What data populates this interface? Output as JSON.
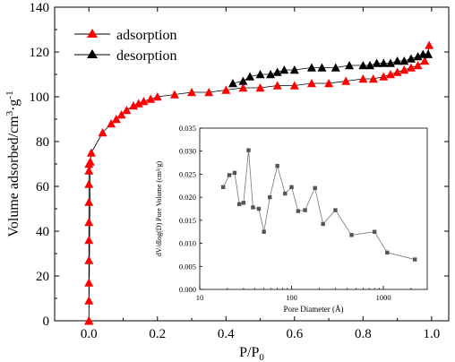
{
  "chart_data": [
    {
      "type": "line",
      "xlabel_main": "P/P",
      "xlabel_sub": "0",
      "ylabel": "Volume adsorbed/cm",
      "ylabel_sup1": "3",
      "ylabel_mid": "·g",
      "ylabel_sup2": "-1",
      "xlim": [
        -0.1,
        1.05
      ],
      "ylim": [
        0,
        140
      ],
      "xticks": [
        0.0,
        0.2,
        0.4,
        0.6,
        0.8,
        1.0
      ],
      "xtick_labels": [
        "0.0",
        "0.2",
        "0.4",
        "0.6",
        "0.8",
        "1.0"
      ],
      "yticks": [
        0,
        20,
        40,
        60,
        80,
        100,
        120,
        140
      ],
      "ytick_labels": [
        "0",
        "20",
        "40",
        "60",
        "80",
        "100",
        "120",
        "140"
      ],
      "legend_position": "top-left",
      "series": [
        {
          "name": "adsorption",
          "color": "#ff0000",
          "marker": "triangle-up",
          "x": [
            0.0,
            0.0,
            0.0,
            0.0,
            0.0,
            0.0,
            0.0,
            0.0,
            0.0,
            0.0,
            0.0,
            0.0,
            0.0,
            0.004,
            0.007,
            0.04,
            0.065,
            0.08,
            0.095,
            0.11,
            0.13,
            0.145,
            0.16,
            0.18,
            0.2,
            0.25,
            0.3,
            0.35,
            0.4,
            0.45,
            0.5,
            0.55,
            0.6,
            0.65,
            0.7,
            0.75,
            0.8,
            0.83,
            0.86,
            0.88,
            0.9,
            0.92,
            0.94,
            0.96,
            0.98,
            0.99,
            0.993
          ],
          "y": [
            0,
            9,
            17,
            27,
            36,
            44,
            53,
            61,
            67,
            70,
            0,
            0,
            0,
            71,
            75,
            84,
            88,
            90,
            92,
            94,
            96,
            97,
            98,
            99,
            100,
            101,
            102,
            102,
            103,
            104,
            104,
            105,
            105,
            106,
            106,
            107,
            108,
            108,
            109,
            110,
            111,
            112,
            113,
            114,
            116,
            119,
            123
          ]
        },
        {
          "name": "desorption",
          "color": "#000000",
          "marker": "triangle-up",
          "x": [
            0.99,
            0.975,
            0.96,
            0.94,
            0.92,
            0.9,
            0.88,
            0.86,
            0.84,
            0.82,
            0.8,
            0.76,
            0.72,
            0.68,
            0.65,
            0.6,
            0.57,
            0.55,
            0.53,
            0.5,
            0.47,
            0.45,
            0.42
          ],
          "y": [
            119,
            119,
            118,
            117,
            116,
            116,
            115,
            115,
            115,
            114,
            114,
            114,
            113,
            113,
            113,
            112,
            112,
            111,
            110,
            110,
            109,
            107,
            106
          ]
        }
      ]
    },
    {
      "type": "line",
      "xlabel": "Pore Diameter (Å)",
      "ylabel": "dV/dlog(D) Pore Volume (cm³/g)",
      "xscale": "log",
      "xlim": [
        10,
        3000
      ],
      "ylim": [
        0,
        0.035
      ],
      "xticks": [
        10,
        100,
        1000
      ],
      "xtick_labels": [
        "10",
        "100",
        "1000"
      ],
      "yticks": [
        0,
        0.005,
        0.01,
        0.015,
        0.02,
        0.025,
        0.03,
        0.035
      ],
      "ytick_labels": [
        "0.000",
        "0.005",
        "0.010",
        "0.015",
        "0.020",
        "0.025",
        "0.030",
        "0.035"
      ],
      "series": [
        {
          "color": "#555555",
          "marker": "square",
          "x": [
            18,
            21,
            24,
            27,
            30,
            34,
            38,
            44,
            50,
            58,
            70,
            85,
            100,
            118,
            140,
            180,
            220,
            300,
            450,
            800,
            1100,
            2200
          ],
          "y": [
            0.0222,
            0.0248,
            0.0253,
            0.0185,
            0.0188,
            0.0302,
            0.0178,
            0.0175,
            0.0125,
            0.02,
            0.0268,
            0.0208,
            0.0222,
            0.017,
            0.0172,
            0.022,
            0.0142,
            0.0172,
            0.0118,
            0.0125,
            0.008,
            0.0065
          ]
        }
      ]
    }
  ]
}
